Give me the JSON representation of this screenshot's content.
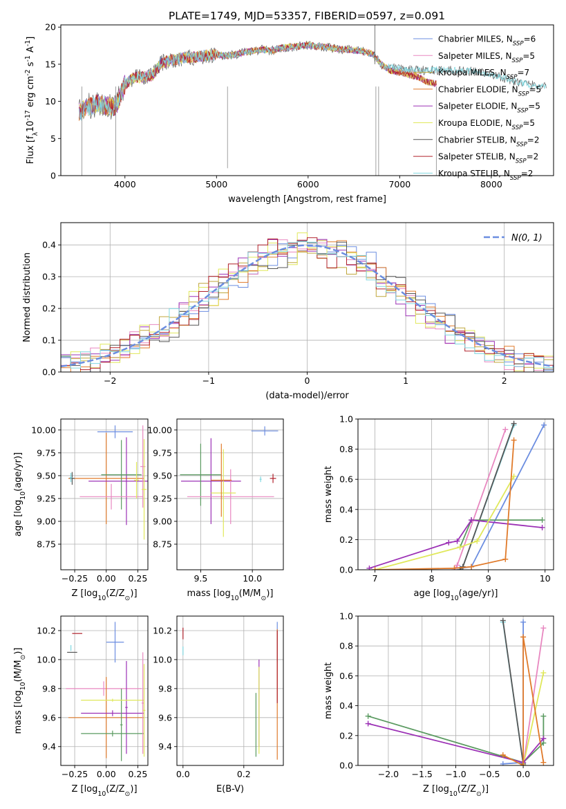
{
  "figure": {
    "title": "PLATE=1749, MJD=53357, FIBERID=0597, z=0.091"
  },
  "chart_data": [
    {
      "id": "spectrum",
      "type": "line",
      "xlabel": "wavelength [Angstrom, rest frame]",
      "ylabel": "Flux [f$_\\lambda$10$^{-17}$ erg cm$^{-2}$ s$^{-1}$ A$^{-1}$]",
      "xlim": [
        3300,
        8680
      ],
      "ylim": [
        0,
        20.3
      ],
      "xticks": [
        4000,
        5000,
        6000,
        7000,
        8000
      ],
      "yticks": [
        0,
        5,
        10,
        15,
        20
      ],
      "grid": false,
      "legend": "upper-right",
      "legend_entries": [
        {
          "name": "Chabrier MILES, N$_{SSP}$=6",
          "color": "#6b8de0"
        },
        {
          "name": "Salpeter MILES, N$_{SSP}$=5",
          "color": "#e887c0"
        },
        {
          "name": "Kroupa MILES, N$_{SSP}$=7",
          "color": "#bfa63a"
        },
        {
          "name": "Chabrier ELODIE, N$_{SSP}$=5",
          "color": "#e07a2a"
        },
        {
          "name": "Salpeter ELODIE, N$_{SSP}$=5",
          "color": "#9b30b5"
        },
        {
          "name": "Kroupa ELODIE, N$_{SSP}$=5",
          "color": "#e0e85a"
        },
        {
          "name": "Chabrier STELIB, N$_{SSP}$=2",
          "color": "#555555"
        },
        {
          "name": "Salpeter STELIB, N$_{SSP}$=2",
          "color": "#b0202a"
        },
        {
          "name": "Kroupa STELIB, N$_{SSP}$=2",
          "color": "#80d8e0"
        }
      ],
      "continuum": {
        "x": [
          3500,
          3600,
          3700,
          3800,
          3900,
          4000,
          4100,
          4200,
          4300,
          4400,
          4500,
          4600,
          4700,
          4800,
          4900,
          5000,
          5100,
          5200,
          5300,
          5400,
          5500,
          5600,
          5700,
          5800,
          5900,
          6000,
          6100,
          6200,
          6300,
          6400,
          6500,
          6600,
          6700,
          6800,
          6900,
          7000,
          7100,
          7200,
          7300,
          7400
        ],
        "y": [
          8.5,
          9.3,
          9.7,
          9.4,
          9.3,
          12.3,
          13.2,
          13.3,
          13.5,
          15.2,
          15.5,
          15.8,
          15.9,
          16.0,
          16.2,
          16.3,
          16.1,
          16.3,
          16.6,
          16.8,
          17.0,
          16.8,
          17.2,
          17.3,
          17.4,
          17.6,
          17.4,
          17.3,
          17.1,
          17.0,
          16.9,
          16.7,
          16.4,
          15.0,
          14.1,
          13.9,
          13.6,
          13.3,
          12.6,
          12.4
        ]
      },
      "stelib_extension": {
        "x": [
          6800,
          7000,
          7200,
          7400,
          7600,
          7800,
          8000,
          8200,
          8400,
          8600
        ],
        "y": [
          14.8,
          14.4,
          14.2,
          14.2,
          14.2,
          14.0,
          13.7,
          12.9,
          12.3,
          12.0
        ]
      }
    },
    {
      "id": "residuals",
      "type": "line",
      "xlabel": "(data-model)/error",
      "ylabel": "Normed distribution",
      "xlim": [
        -2.5,
        2.5
      ],
      "ylim": [
        0,
        0.47
      ],
      "xticks": [
        -2,
        -1,
        0,
        1,
        2
      ],
      "yticks": [
        0.0,
        0.1,
        0.2,
        0.3,
        0.4
      ],
      "grid": true,
      "legend": "upper-right",
      "legend_entries": [
        {
          "name": "$\\mathcal{N}(0, 1)$",
          "color": "#6b8de0",
          "style": "dashed"
        }
      ],
      "bin_width": 0.1,
      "histogram_series": [
        {
          "color": "#6b8de0",
          "noise": 0.03
        },
        {
          "color": "#e887c0",
          "noise": 0.035
        },
        {
          "color": "#bfa63a",
          "noise": 0.03
        },
        {
          "color": "#e07a2a",
          "noise": 0.03
        },
        {
          "color": "#9b30b5",
          "noise": 0.035
        },
        {
          "color": "#e0e85a",
          "noise": 0.04
        },
        {
          "color": "#555555",
          "noise": 0.035
        },
        {
          "color": "#b0202a",
          "noise": 0.04
        },
        {
          "color": "#80d8e0",
          "noise": 0.03
        }
      ]
    },
    {
      "id": "age-vs-Z",
      "type": "scatter",
      "xlabel": "Z [log$_{10}$(Z/Z$_\\odot$)]",
      "ylabel": "age  [log$_{10}$(age/yr)]",
      "xlim": [
        -0.36,
        0.33
      ],
      "ylim": [
        8.47,
        10.12
      ],
      "xticks": [
        -0.25,
        0.0,
        0.25
      ],
      "yticks": [
        8.75,
        9.0,
        9.25,
        9.5,
        9.75,
        10.0
      ],
      "grid": true,
      "points": [
        {
          "x": 0.07,
          "y": 9.98,
          "xerr": 0.14,
          "yerr": 0.07,
          "color": "#6b8de0"
        },
        {
          "x": 0.0,
          "y": 9.47,
          "xerr": 0.3,
          "yerr": 0.5,
          "color": "#e07a2a"
        },
        {
          "x": 0.16,
          "y": 9.44,
          "xerr": 0.3,
          "yerr": 0.48,
          "color": "#9b30b5"
        },
        {
          "x": 0.12,
          "y": 9.51,
          "xerr": 0.16,
          "yerr": 0.38,
          "color": "#5a9a60"
        },
        {
          "x": 0.04,
          "y": 9.27,
          "xerr": 0.25,
          "yerr": 0.14,
          "color": "#e887c0"
        },
        {
          "x": 0.29,
          "y": 9.6,
          "xerr": 0.02,
          "yerr": 0.45,
          "color": "#e887c0"
        },
        {
          "x": 0.3,
          "y": 9.35,
          "xerr": 0.02,
          "yerr": 0.55,
          "color": "#e0e85a"
        },
        {
          "x": 0.24,
          "y": 9.45,
          "xerr": 0.02,
          "yerr": 0.2,
          "color": "#e0e85a"
        },
        {
          "x": -0.27,
          "y": 9.47,
          "xerr": 0.02,
          "yerr": 0.07,
          "color": "#555555"
        },
        {
          "x": -0.28,
          "y": 9.48,
          "xerr": 0.01,
          "yerr": 0.05,
          "color": "#80d8e0"
        }
      ]
    },
    {
      "id": "age-vs-mass",
      "type": "scatter",
      "xlabel": "mass [log$_{10}$(M/M$_\\odot$)]",
      "ylabel": "",
      "xlim": [
        9.27,
        10.3
      ],
      "ylim": [
        8.47,
        10.12
      ],
      "xticks": [
        9.5,
        10.0
      ],
      "yticks": [
        8.75,
        9.0,
        9.25,
        9.5,
        9.75,
        10.0
      ],
      "grid": true,
      "points": [
        {
          "x": 10.12,
          "y": 9.99,
          "xerr": 0.13,
          "yerr": 0.05,
          "color": "#6b8de0"
        },
        {
          "x": 9.6,
          "y": 9.44,
          "xerr": 0.29,
          "yerr": 0.47,
          "color": "#9b30b5"
        },
        {
          "x": 9.5,
          "y": 9.51,
          "xerr": 0.2,
          "yerr": 0.34,
          "color": "#5a9a60"
        },
        {
          "x": 9.79,
          "y": 9.27,
          "xerr": 0.42,
          "yerr": 0.3,
          "color": "#e887c0"
        },
        {
          "x": 9.72,
          "y": 9.31,
          "xerr": 0.12,
          "yerr": 0.48,
          "color": "#e0e85a"
        },
        {
          "x": 9.7,
          "y": 9.45,
          "xerr": 0.1,
          "yerr": 0.4,
          "color": "#e07a2a"
        },
        {
          "x": 10.2,
          "y": 9.47,
          "xerr": 0.03,
          "yerr": 0.05,
          "color": "#b0202a"
        },
        {
          "x": 10.08,
          "y": 9.46,
          "xerr": 0.01,
          "yerr": 0.03,
          "color": "#80d8e0"
        }
      ]
    },
    {
      "id": "weight-vs-age",
      "type": "line",
      "xlabel": "age  [log$_{10}$(age/yr)]",
      "ylabel": "mass weight",
      "xlim": [
        6.7,
        10.15
      ],
      "ylim": [
        0,
        1.0
      ],
      "xticks": [
        7,
        8,
        9,
        10
      ],
      "yticks": [
        0.0,
        0.2,
        0.4,
        0.6,
        0.8,
        1.0
      ],
      "grid": true,
      "series": [
        {
          "color": "#6b8de0",
          "x": [
            8.5,
            8.7,
            9.98
          ],
          "y": [
            0.01,
            0.02,
            0.96
          ]
        },
        {
          "color": "#e887c0",
          "x": [
            8.4,
            8.45,
            9.3
          ],
          "y": [
            0.0,
            0.03,
            0.93
          ]
        },
        {
          "color": "#80d8e0",
          "x": [
            8.5,
            8.55,
            9.45
          ],
          "y": [
            0.0,
            0.02,
            0.96
          ]
        },
        {
          "color": "#555555",
          "x": [
            8.5,
            8.55,
            9.45
          ],
          "y": [
            0.0,
            0.02,
            0.97
          ]
        },
        {
          "color": "#5a9a60",
          "x": [
            8.5,
            8.7,
            9.95
          ],
          "y": [
            0.15,
            0.33,
            0.33
          ]
        },
        {
          "color": "#9b30b5",
          "x": [
            6.9,
            8.3,
            8.45,
            8.7,
            9.95
          ],
          "y": [
            0.01,
            0.18,
            0.19,
            0.33,
            0.28
          ]
        },
        {
          "color": "#e0e85a",
          "x": [
            7.0,
            8.5,
            8.8,
            9.45
          ],
          "y": [
            0.0,
            0.15,
            0.19,
            0.62
          ]
        },
        {
          "color": "#e07a2a",
          "x": [
            7.0,
            8.4,
            8.7,
            9.3,
            9.45
          ],
          "y": [
            0.0,
            0.01,
            0.02,
            0.07,
            0.86
          ]
        }
      ]
    },
    {
      "id": "mass-vs-Z",
      "type": "scatter",
      "xlabel": "Z [log$_{10}$(Z/Z$_\\odot$)]",
      "ylabel": "mass [log$_{10}$(M/M$_\\odot$)]",
      "xlim": [
        -0.36,
        0.33
      ],
      "ylim": [
        9.27,
        10.3
      ],
      "xticks": [
        -0.25,
        0.0,
        0.25
      ],
      "yticks": [
        9.4,
        9.6,
        9.8,
        10.0,
        10.2
      ],
      "grid": true,
      "points": [
        {
          "x": 0.07,
          "y": 10.12,
          "xerr": 0.07,
          "yerr": 0.14,
          "color": "#6b8de0"
        },
        {
          "x": -0.02,
          "y": 9.8,
          "xerr": 0.3,
          "yerr": 0.05,
          "color": "#e887c0"
        },
        {
          "x": 0.0,
          "y": 9.6,
          "xerr": 0.3,
          "yerr": 0.28,
          "color": "#e07a2a"
        },
        {
          "x": 0.05,
          "y": 9.63,
          "xerr": 0.25,
          "yerr": 0.02,
          "color": "#9b30b5"
        },
        {
          "x": 0.16,
          "y": 9.67,
          "xerr": 0.01,
          "yerr": 0.32,
          "color": "#9b30b5"
        },
        {
          "x": 0.05,
          "y": 9.49,
          "xerr": 0.25,
          "yerr": 0.02,
          "color": "#5a9a60"
        },
        {
          "x": 0.12,
          "y": 9.55,
          "xerr": 0.01,
          "yerr": 0.25,
          "color": "#5a9a60"
        },
        {
          "x": 0.05,
          "y": 9.72,
          "xerr": 0.25,
          "yerr": 0.01,
          "color": "#e0e85a"
        },
        {
          "x": 0.29,
          "y": 9.7,
          "xerr": 0.01,
          "yerr": 0.35,
          "color": "#e887c0"
        },
        {
          "x": 0.3,
          "y": 9.65,
          "xerr": 0.01,
          "yerr": 0.32,
          "color": "#e0e85a"
        },
        {
          "x": -0.23,
          "y": 10.18,
          "xerr": 0.04,
          "yerr": 0.0,
          "color": "#b0202a"
        },
        {
          "x": -0.27,
          "y": 10.05,
          "xerr": 0.04,
          "yerr": 0.0,
          "color": "#555555"
        },
        {
          "x": -0.28,
          "y": 10.08,
          "xerr": 0.0,
          "yerr": 0.02,
          "color": "#80d8e0"
        }
      ]
    },
    {
      "id": "mass-vs-ebv",
      "type": "scatter",
      "xlabel": "E(B-V)",
      "ylabel": "",
      "xlim": [
        -0.02,
        0.33
      ],
      "ylim": [
        9.27,
        10.3
      ],
      "xticks": [
        0.0,
        0.2
      ],
      "yticks": [
        9.4,
        9.6,
        9.8,
        10.0,
        10.2
      ],
      "grid": true,
      "points": [
        {
          "x": 0.31,
          "y": 10.12,
          "xerr": 0.0,
          "yerr": 0.14,
          "color": "#6b8de0"
        },
        {
          "x": 0.31,
          "y": 9.76,
          "xerr": 0.0,
          "yerr": 0.45,
          "color": "#e07a2a"
        },
        {
          "x": 0.31,
          "y": 9.95,
          "xerr": 0.0,
          "yerr": 0.25,
          "color": "#b0202a"
        },
        {
          "x": 0.25,
          "y": 9.7,
          "xerr": 0.0,
          "yerr": 0.3,
          "color": "#9b30b5"
        },
        {
          "x": 0.25,
          "y": 9.65,
          "xerr": 0.0,
          "yerr": 0.3,
          "color": "#e0e85a"
        },
        {
          "x": 0.24,
          "y": 9.55,
          "xerr": 0.0,
          "yerr": 0.22,
          "color": "#5a9a60"
        },
        {
          "x": 0.0,
          "y": 10.18,
          "xerr": 0.0,
          "yerr": 0.04,
          "color": "#b0202a"
        },
        {
          "x": 0.0,
          "y": 10.06,
          "xerr": 0.0,
          "yerr": 0.03,
          "color": "#80d8e0"
        }
      ]
    },
    {
      "id": "weight-vs-Z",
      "type": "line",
      "xlabel": "Z [log$_{10}$(Z/Z$_\\odot$)]",
      "ylabel": "mass weight",
      "xlim": [
        -2.45,
        0.45
      ],
      "ylim": [
        0,
        1.0
      ],
      "xticks": [
        -2.0,
        -1.5,
        -1.0,
        -0.5,
        0.0
      ],
      "yticks": [
        0.0,
        0.2,
        0.4,
        0.6,
        0.8,
        1.0
      ],
      "grid": true,
      "series": [
        {
          "color": "#6b8de0",
          "x": [
            -0.3,
            0.0,
            0.0
          ],
          "y": [
            0.01,
            0.02,
            0.96
          ]
        },
        {
          "color": "#80d8e0",
          "x": [
            -0.3,
            0.0
          ],
          "y": [
            0.96,
            0.01
          ]
        },
        {
          "color": "#555555",
          "x": [
            -0.3,
            0.0
          ],
          "y": [
            0.97,
            0.01
          ]
        },
        {
          "color": "#e887c0",
          "x": [
            0.0,
            0.3
          ],
          "y": [
            0.0,
            0.92
          ]
        },
        {
          "color": "#e0e85a",
          "x": [
            0.0,
            0.3
          ],
          "y": [
            0.0,
            0.62
          ]
        },
        {
          "color": "#5a9a60",
          "x": [
            -2.3,
            0.0,
            0.3,
            0.3
          ],
          "y": [
            0.33,
            0.02,
            0.15,
            0.33
          ]
        },
        {
          "color": "#9b30b5",
          "x": [
            -2.3,
            0.0,
            0.3
          ],
          "y": [
            0.28,
            0.02,
            0.18
          ]
        },
        {
          "color": "#e07a2a",
          "x": [
            -0.3,
            0.0,
            0.0,
            0.3
          ],
          "y": [
            0.07,
            0.0,
            0.86,
            0.02
          ]
        }
      ]
    }
  ]
}
